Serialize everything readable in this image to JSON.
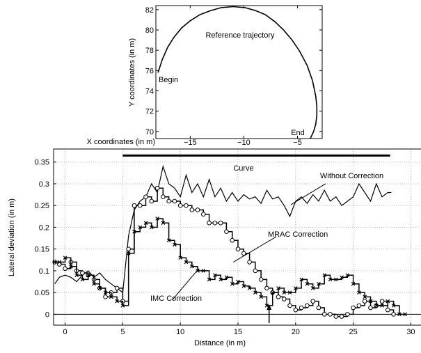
{
  "chart_data": [
    {
      "type": "line",
      "title": "",
      "xlabel": "X coordinates (in m)",
      "ylabel": "Y coordinates (in m)",
      "xlim": [
        -18.2,
        -2.7
      ],
      "ylim": [
        69.3,
        82.4
      ],
      "x_ticks": [
        "−15",
        "−10",
        "−5"
      ],
      "x_tick_values": [
        -15,
        -10,
        -5
      ],
      "y_ticks": [
        "70",
        "72",
        "74",
        "76",
        "78",
        "80",
        "82"
      ],
      "y_tick_values": [
        70,
        72,
        74,
        76,
        78,
        80,
        82
      ],
      "grid": false,
      "annotations": [
        {
          "label": "Reference trajectory",
          "x": -11.4,
          "y": 79.9
        },
        {
          "label": "Begin",
          "x": -17.6,
          "y": 74.9
        },
        {
          "label": "End",
          "x": -5.8,
          "y": 70.1
        }
      ],
      "series": [
        {
          "x": [
            -18.0,
            -17.6,
            -17.1,
            -16.5,
            -15.8,
            -15.0,
            -14.1,
            -13.1,
            -12.1,
            -11.0,
            -9.9,
            -8.9,
            -8.0,
            -7.1,
            -6.3,
            -5.5,
            -4.8,
            -4.1,
            -3.6,
            -3.3,
            -3.2,
            -3.2,
            -3.3,
            -3.5,
            -3.8
          ],
          "y": [
            75.8,
            77.1,
            78.3,
            79.3,
            80.2,
            80.9,
            81.5,
            81.9,
            82.2,
            82.3,
            82.2,
            81.9,
            81.5,
            80.8,
            80.0,
            79.0,
            77.9,
            76.5,
            75.0,
            73.5,
            72.5,
            71.6,
            70.7,
            70.0,
            69.3
          ]
        }
      ]
    },
    {
      "type": "line",
      "title": "",
      "xlabel": "Distance (in m)",
      "ylabel": "Lateral deviation (in m)",
      "xlim": [
        -1,
        31
      ],
      "ylim": [
        -0.025,
        0.38
      ],
      "x_ticks": [
        "0",
        "5",
        "10",
        "15",
        "20",
        "25",
        "30"
      ],
      "x_tick_values": [
        0,
        5,
        10,
        15,
        20,
        25,
        30
      ],
      "y_ticks": [
        "0",
        "0.05",
        "0.1",
        "0.15",
        "0.2",
        "0.25",
        "0.3",
        "0.35"
      ],
      "y_tick_values": [
        0,
        0.05,
        0.1,
        0.15,
        0.2,
        0.25,
        0.3,
        0.35
      ],
      "grid": true,
      "curve_segment": {
        "label": "Curve",
        "x_start": 5,
        "x_end": 28.2,
        "y": 0.365
      },
      "arrow_x": 17.7,
      "annotations": [
        {
          "label": "Without Correction",
          "text_x": 22.6,
          "text_y": 0.3,
          "target_x": 19.6,
          "target_y": 0.252
        },
        {
          "label": "MRAC Correction",
          "text_x": 18.3,
          "text_y": 0.178,
          "target_x": 14.6,
          "target_y": 0.12
        },
        {
          "label": "IMC Correction",
          "text_x": 9.3,
          "text_y": 0.033,
          "target_x": 11.6,
          "target_y": 0.105
        }
      ],
      "series": [
        {
          "name": "Without Correction",
          "marker": "none",
          "x": [
            -0.9,
            -0.5,
            0.0,
            0.5,
            1.0,
            1.5,
            2.0,
            2.5,
            3.0,
            3.5,
            4.0,
            4.5,
            5.0,
            5.5,
            6.0,
            6.5,
            7.0,
            7.5,
            8.0,
            8.5,
            9.0,
            9.5,
            10.0,
            10.5,
            11.0,
            11.5,
            12.0,
            12.5,
            13.0,
            13.5,
            14.0,
            14.5,
            15.0,
            15.5,
            16.0,
            16.5,
            17.0,
            17.5,
            18.0,
            18.5,
            19.0,
            19.5,
            20.0,
            20.5,
            21.0,
            21.5,
            22.0,
            22.5,
            23.0,
            23.5,
            24.0,
            24.5,
            25.0,
            25.5,
            26.0,
            26.5,
            27.0,
            27.5,
            28.0,
            28.3
          ],
          "y": [
            0.07,
            0.085,
            0.09,
            0.085,
            0.075,
            0.09,
            0.1,
            0.085,
            0.095,
            0.08,
            0.07,
            0.06,
            0.05,
            0.18,
            0.24,
            0.26,
            0.27,
            0.3,
            0.28,
            0.34,
            0.3,
            0.29,
            0.27,
            0.32,
            0.28,
            0.3,
            0.27,
            0.31,
            0.27,
            0.29,
            0.26,
            0.28,
            0.26,
            0.275,
            0.265,
            0.27,
            0.255,
            0.285,
            0.265,
            0.27,
            0.25,
            0.225,
            0.26,
            0.27,
            0.255,
            0.275,
            0.26,
            0.285,
            0.26,
            0.27,
            0.25,
            0.26,
            0.27,
            0.3,
            0.28,
            0.26,
            0.3,
            0.27,
            0.28,
            0.28
          ]
        },
        {
          "name": "MRAC Correction",
          "marker": "circle",
          "x": [
            -0.9,
            -0.5,
            0.0,
            0.5,
            1.0,
            1.5,
            2.0,
            2.5,
            3.0,
            3.5,
            4.0,
            4.5,
            5.0,
            5.5,
            6.0,
            6.5,
            7.0,
            7.5,
            8.0,
            8.5,
            9.0,
            9.5,
            10.0,
            10.5,
            11.0,
            11.5,
            12.0,
            12.5,
            13.0,
            13.5,
            14.0,
            14.5,
            15.0,
            15.5,
            16.0,
            16.5,
            17.0,
            17.5,
            18.0,
            18.5,
            19.0,
            19.5,
            20.0,
            20.5,
            21.0,
            21.5,
            22.0,
            22.5,
            23.0,
            23.5,
            24.0,
            24.5,
            25.0,
            25.5,
            26.0,
            26.5,
            27.0,
            27.5,
            28.0,
            28.5
          ],
          "y": [
            0.12,
            0.115,
            0.105,
            0.12,
            0.1,
            0.095,
            0.09,
            0.08,
            0.06,
            0.04,
            0.05,
            0.06,
            0.03,
            0.15,
            0.25,
            0.25,
            0.27,
            0.26,
            0.29,
            0.27,
            0.26,
            0.26,
            0.25,
            0.25,
            0.24,
            0.24,
            0.23,
            0.21,
            0.21,
            0.21,
            0.19,
            0.17,
            0.15,
            0.14,
            0.12,
            0.1,
            0.08,
            0.06,
            0.05,
            0.04,
            0.035,
            0.02,
            0.01,
            0.015,
            0.02,
            0.03,
            0.015,
            0.0,
            0.0,
            -0.005,
            -0.005,
            0.0,
            0.015,
            0.02,
            0.03,
            0.015,
            0.02,
            0.03,
            0.01,
            0.0
          ]
        },
        {
          "name": "IMC Correction",
          "marker": "x",
          "x": [
            -0.9,
            -0.5,
            0.0,
            0.5,
            1.0,
            1.5,
            2.0,
            2.5,
            3.0,
            3.5,
            4.0,
            4.5,
            5.0,
            5.5,
            6.0,
            6.5,
            7.0,
            7.5,
            8.0,
            8.5,
            9.0,
            9.5,
            10.0,
            10.5,
            11.0,
            11.5,
            12.0,
            12.5,
            13.0,
            13.5,
            14.0,
            14.5,
            15.0,
            15.5,
            16.0,
            16.5,
            17.0,
            17.5,
            18.0,
            18.5,
            19.0,
            19.5,
            20.0,
            20.5,
            21.0,
            21.5,
            22.0,
            22.5,
            23.0,
            23.5,
            24.0,
            24.5,
            25.0,
            25.5,
            26.0,
            26.5,
            27.0,
            27.5,
            28.0,
            28.5,
            29.0,
            29.5
          ],
          "y": [
            0.12,
            0.12,
            0.13,
            0.11,
            0.09,
            0.08,
            0.09,
            0.07,
            0.06,
            0.05,
            0.04,
            0.03,
            0.02,
            0.14,
            0.19,
            0.2,
            0.21,
            0.2,
            0.22,
            0.21,
            0.17,
            0.16,
            0.13,
            0.12,
            0.11,
            0.1,
            0.1,
            0.08,
            0.09,
            0.08,
            0.085,
            0.07,
            0.075,
            0.065,
            0.06,
            0.05,
            0.04,
            0.02,
            0.05,
            0.06,
            0.05,
            0.05,
            0.06,
            0.08,
            0.07,
            0.06,
            0.07,
            0.09,
            0.08,
            0.08,
            0.085,
            0.09,
            0.07,
            0.05,
            0.04,
            0.03,
            0.02,
            0.02,
            0.03,
            0.02,
            0.0,
            0.0
          ]
        }
      ]
    }
  ]
}
